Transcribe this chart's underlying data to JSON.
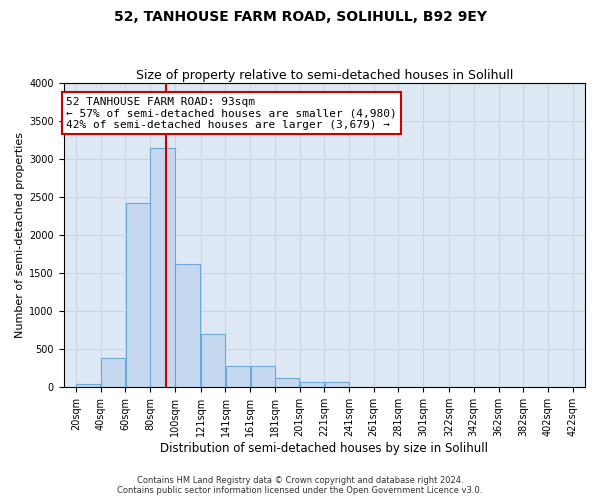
{
  "title": "52, TANHOUSE FARM ROAD, SOLIHULL, B92 9EY",
  "subtitle": "Size of property relative to semi-detached houses in Solihull",
  "xlabel": "Distribution of semi-detached houses by size in Solihull",
  "ylabel": "Number of semi-detached properties",
  "footer_line1": "Contains HM Land Registry data © Crown copyright and database right 2024.",
  "footer_line2": "Contains public sector information licensed under the Open Government Licence v3.0.",
  "annotation_title": "52 TANHOUSE FARM ROAD: 93sqm",
  "annotation_line1": "← 57% of semi-detached houses are smaller (4,980)",
  "annotation_line2": "42% of semi-detached houses are larger (3,679) →",
  "bar_left_edges": [
    20,
    40,
    60,
    80,
    100,
    121,
    141,
    161,
    181,
    201,
    221,
    241,
    261,
    281,
    301,
    322,
    342,
    362,
    382,
    402
  ],
  "bar_heights": [
    50,
    380,
    2420,
    3150,
    1620,
    700,
    280,
    280,
    120,
    65,
    65,
    5,
    0,
    0,
    0,
    0,
    0,
    0,
    0,
    0
  ],
  "bar_widths": [
    20,
    20,
    20,
    20,
    21,
    20,
    20,
    20,
    20,
    20,
    20,
    20,
    20,
    20,
    21,
    20,
    20,
    20,
    20,
    20
  ],
  "bar_color": "#c5d8ef",
  "bar_edge_color": "#6aaad4",
  "property_line_x": 93,
  "property_line_color": "#cc0000",
  "ylim": [
    0,
    4000
  ],
  "yticks": [
    0,
    500,
    1000,
    1500,
    2000,
    2500,
    3000,
    3500,
    4000
  ],
  "x_tick_labels": [
    "20sqm",
    "40sqm",
    "60sqm",
    "80sqm",
    "100sqm",
    "121sqm",
    "141sqm",
    "161sqm",
    "181sqm",
    "201sqm",
    "221sqm",
    "241sqm",
    "261sqm",
    "281sqm",
    "301sqm",
    "322sqm",
    "342sqm",
    "362sqm",
    "382sqm",
    "402sqm",
    "422sqm"
  ],
  "x_tick_positions": [
    20,
    40,
    60,
    80,
    100,
    121,
    141,
    161,
    181,
    201,
    221,
    241,
    261,
    281,
    301,
    322,
    342,
    362,
    382,
    402,
    422
  ],
  "grid_color": "#c8d4e0",
  "background_color": "#dde8f4",
  "annotation_box_facecolor": "#ffffff",
  "annotation_box_edgecolor": "#cc0000",
  "title_fontsize": 10,
  "subtitle_fontsize": 9,
  "tick_fontsize": 7,
  "ylabel_fontsize": 8,
  "xlabel_fontsize": 8.5,
  "annotation_fontsize": 8,
  "footer_fontsize": 6
}
